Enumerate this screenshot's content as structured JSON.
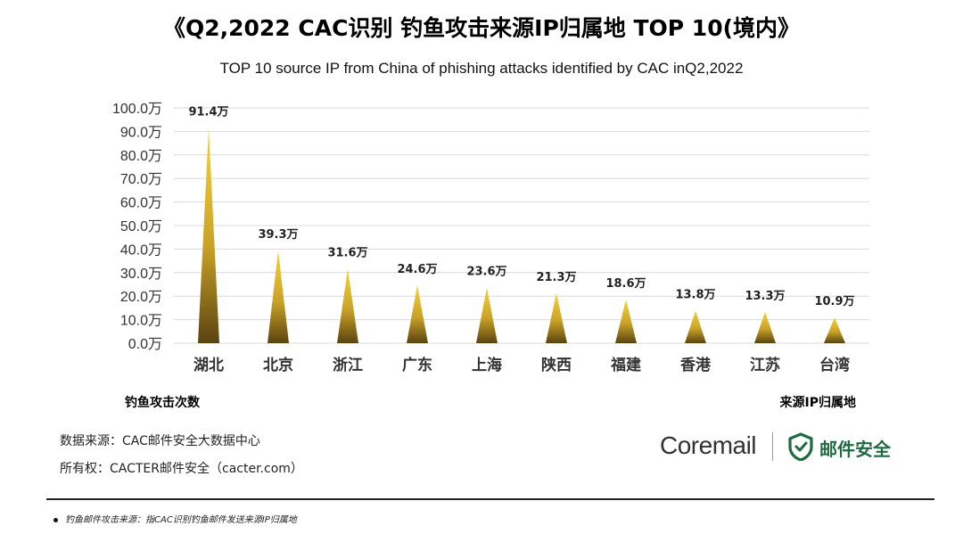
{
  "header": {
    "title": "《Q2,2022  CAC识别 钓鱼攻击来源IP归属地 TOP 10(境内》",
    "subtitle": "TOP 10 source IP from China of phishing attacks identified by CAC inQ2,2022"
  },
  "chart_data": {
    "type": "bar",
    "categories": [
      "湖北",
      "北京",
      "浙江",
      "广东",
      "上海",
      "陕西",
      "福建",
      "香港",
      "江苏",
      "台湾"
    ],
    "values": [
      91.4,
      39.3,
      31.6,
      24.6,
      23.6,
      21.3,
      18.6,
      13.8,
      13.3,
      10.9
    ],
    "value_labels": [
      "91.4万",
      "39.3万",
      "31.6万",
      "24.6万",
      "23.6万",
      "21.3万",
      "18.6万",
      "13.8万",
      "13.3万",
      "10.9万"
    ],
    "unit": "万",
    "ylim": [
      0,
      100
    ],
    "yticks": [
      0,
      10,
      20,
      30,
      40,
      50,
      60,
      70,
      80,
      90,
      100
    ],
    "ytick_labels": [
      "0.0万",
      "10.0万",
      "20.0万",
      "30.0万",
      "40.0万",
      "50.0万",
      "60.0万",
      "70.0万",
      "80.0万",
      "90.0万",
      "100.0万"
    ],
    "ylabel": "钓鱼攻击次数",
    "xlabel": "来源IP归属地",
    "grid": true,
    "mark_shape": "triangle",
    "colors": {
      "bar_top": "#f7d23a",
      "bar_mid": "#c9a227",
      "bar_bottom": "#5a4410",
      "grid": "#d9d9d9"
    }
  },
  "footer": {
    "source_line": "数据来源：CAC邮件安全大数据中心",
    "copyright_line": "所有权：CACTER邮件安全（cacter.com）",
    "logo_text": "Coremail",
    "logo_cn": "邮件安全",
    "logo_color": "#1f6b42",
    "note": "钓鱼邮件攻击来源：指CAC识别钓鱼邮件发送来源IP归属地"
  }
}
